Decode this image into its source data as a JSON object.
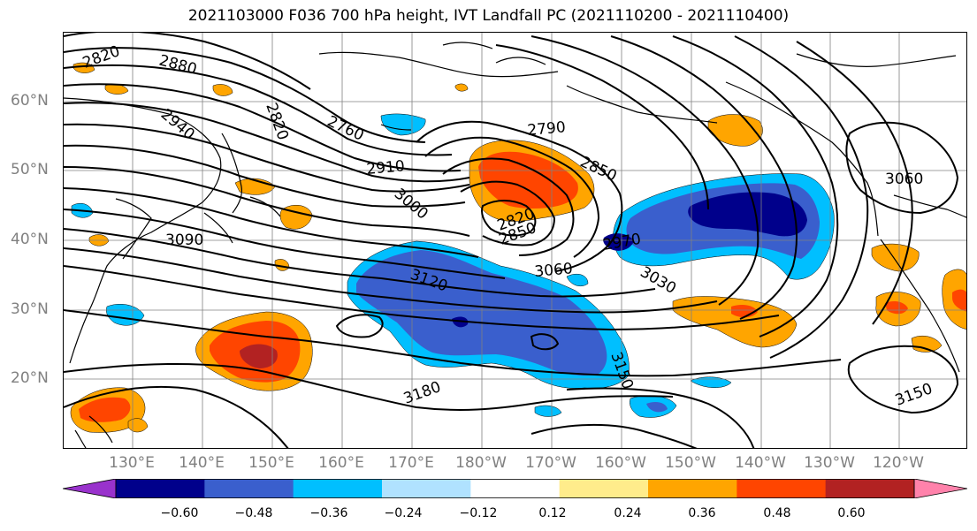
{
  "title": "2021103000 F036 700 hPa height, IVT Landfall PC (2021110200 - 2021110400)",
  "lat_labels": [
    "60°N",
    "50°N",
    "40°N",
    "30°N",
    "20°N"
  ],
  "lon_labels": [
    "130°E",
    "140°E",
    "150°E",
    "160°E",
    "170°E",
    "180°W",
    "170°W",
    "160°W",
    "150°W",
    "140°W",
    "130°W",
    "120°W"
  ],
  "contour_labels": [
    "2820",
    "2880",
    "2940",
    "2820",
    "2760",
    "2790",
    "2850",
    "2910",
    "3000",
    "3090",
    "2820",
    "2850",
    "2970",
    "3060",
    "3030",
    "3120",
    "3180",
    "3150",
    "3150",
    "3060"
  ],
  "colorbar": {
    "tick_labels": [
      "−0.60",
      "−0.48",
      "−0.36",
      "−0.24",
      "−0.12",
      "0.12",
      "0.24",
      "0.36",
      "0.48",
      "0.60"
    ],
    "colors": [
      "#9932cc",
      "#00008b",
      "#3a5fcd",
      "#00bfff",
      "#b0e2ff",
      "#ffffff",
      "#ffec8b",
      "#ffa500",
      "#ff4500",
      "#b22222",
      "#ff82ab"
    ]
  },
  "colors": {
    "neg_strong": "#00008b",
    "neg_mid": "#3a5fcd",
    "neg_light": "#00bfff",
    "neg_pale": "#b0e2ff",
    "pos_pale": "#ffec8b",
    "pos_light": "#ffa500",
    "pos_mid": "#ff4500",
    "pos_strong": "#b22222"
  }
}
